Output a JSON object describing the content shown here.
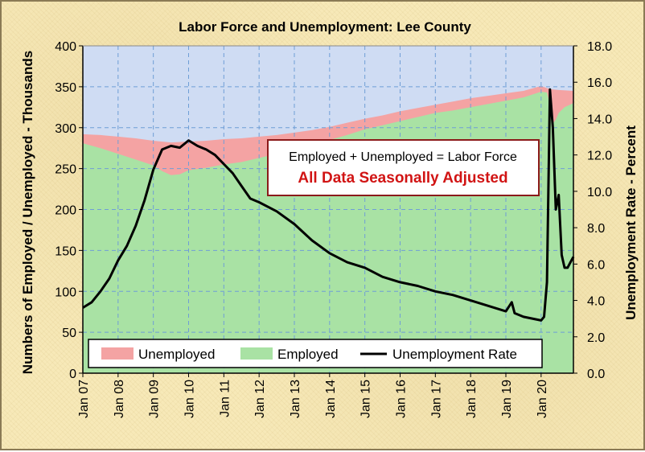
{
  "chart_data": {
    "type": "area",
    "title": "Labor Force and Unemployment: Lee County",
    "ylabel": "Numbers of Employed / Unemployed - Thousands",
    "y2label": "Unemployment Rate - Percent",
    "ylim": [
      0,
      400
    ],
    "y2lim": [
      0,
      18
    ],
    "yticks": [
      "0",
      "50",
      "100",
      "150",
      "200",
      "250",
      "300",
      "350",
      "400"
    ],
    "y2ticks": [
      "0.0",
      "2.0",
      "4.0",
      "6.0",
      "8.0",
      "10.0",
      "12.0",
      "14.0",
      "16.0",
      "18.0"
    ],
    "xticks": [
      "Jan 07",
      "Jan 08",
      "Jan 09",
      "Jan 10",
      "Jan 11",
      "Jan 12",
      "Jan 13",
      "Jan 14",
      "Jan 15",
      "Jan 16",
      "Jan 17",
      "Jan 18",
      "Jan 19",
      "Jan 20"
    ],
    "xrange": [
      "Jan 07",
      "Dec 20"
    ],
    "grid": true,
    "legend_position": "bottom-left",
    "annotations": [
      "Employed + Unemployed = Labor Force",
      "All Data Seasonally Adjusted"
    ],
    "colors": {
      "unemployed": "#f4a3a3",
      "employed": "#a9e2a4",
      "rate": "#000000",
      "plot_background": "#cfdcf3",
      "gridline": "#6f9ed6",
      "annotation_border": "#8b1a1a",
      "annotation_red": "#d11414"
    },
    "series": [
      {
        "name": "Employed",
        "axis": "left",
        "x": [
          "2007-01",
          "2007-07",
          "2008-01",
          "2008-07",
          "2009-01",
          "2009-04",
          "2009-07",
          "2009-10",
          "2010-01",
          "2010-07",
          "2011-01",
          "2011-07",
          "2012-01",
          "2012-07",
          "2013-01",
          "2013-07",
          "2014-01",
          "2014-07",
          "2015-01",
          "2015-07",
          "2016-01",
          "2016-07",
          "2017-01",
          "2017-07",
          "2018-01",
          "2018-07",
          "2019-01",
          "2019-07",
          "2020-01",
          "2020-03",
          "2020-04",
          "2020-05",
          "2020-06",
          "2020-07",
          "2020-09",
          "2020-12"
        ],
        "values": [
          281,
          275,
          268,
          261,
          254,
          247,
          242,
          243,
          248,
          251,
          255,
          258,
          263,
          268,
          273,
          279,
          285,
          291,
          298,
          303,
          308,
          313,
          318,
          321,
          325,
          329,
          333,
          337,
          344,
          343,
          328,
          305,
          310,
          318,
          325,
          330
        ]
      },
      {
        "name": "Labor Force (Employed + Unemployed)",
        "axis": "left",
        "x": [
          "2007-01",
          "2007-07",
          "2008-01",
          "2008-07",
          "2009-01",
          "2009-07",
          "2010-01",
          "2010-07",
          "2011-01",
          "2011-07",
          "2012-01",
          "2012-07",
          "2013-01",
          "2013-07",
          "2014-01",
          "2014-07",
          "2015-01",
          "2015-07",
          "2016-01",
          "2016-07",
          "2017-01",
          "2017-07",
          "2018-01",
          "2018-07",
          "2019-01",
          "2019-07",
          "2020-01",
          "2020-04",
          "2020-07",
          "2020-12"
        ],
        "values": [
          292,
          291,
          289,
          287,
          284,
          282,
          283,
          284,
          286,
          287,
          289,
          291,
          294,
          297,
          301,
          306,
          311,
          315,
          320,
          324,
          328,
          332,
          336,
          339,
          342,
          345,
          351,
          347,
          346,
          345
        ]
      },
      {
        "name": "Unemployment Rate",
        "axis": "right",
        "x": [
          "2007-01",
          "2007-04",
          "2007-07",
          "2007-10",
          "2008-01",
          "2008-04",
          "2008-07",
          "2008-10",
          "2009-01",
          "2009-04",
          "2009-07",
          "2009-10",
          "2010-01",
          "2010-04",
          "2010-07",
          "2010-10",
          "2011-01",
          "2011-04",
          "2011-07",
          "2011-10",
          "2012-01",
          "2012-07",
          "2013-01",
          "2013-07",
          "2014-01",
          "2014-07",
          "2015-01",
          "2015-07",
          "2016-01",
          "2016-07",
          "2017-01",
          "2017-07",
          "2018-01",
          "2018-07",
          "2019-01",
          "2019-03",
          "2019-04",
          "2019-07",
          "2020-01",
          "2020-02",
          "2020-03",
          "2020-04",
          "2020-05",
          "2020-06",
          "2020-07",
          "2020-08",
          "2020-09",
          "2020-10",
          "2020-11",
          "2020-12"
        ],
        "values": [
          3.6,
          3.9,
          4.5,
          5.2,
          6.2,
          7.0,
          8.1,
          9.5,
          11.2,
          12.3,
          12.5,
          12.4,
          12.8,
          12.5,
          12.3,
          12.0,
          11.5,
          11.0,
          10.3,
          9.6,
          9.4,
          8.9,
          8.2,
          7.3,
          6.6,
          6.1,
          5.8,
          5.3,
          5.0,
          4.8,
          4.5,
          4.3,
          4.0,
          3.7,
          3.4,
          3.9,
          3.3,
          3.1,
          2.9,
          3.1,
          5.0,
          15.6,
          13.5,
          9.0,
          9.8,
          6.5,
          5.8,
          5.8,
          6.1,
          6.4
        ]
      }
    ]
  },
  "legend": {
    "unemployed": "Unemployed",
    "employed": "Employed",
    "rate": "Unemployment Rate"
  }
}
